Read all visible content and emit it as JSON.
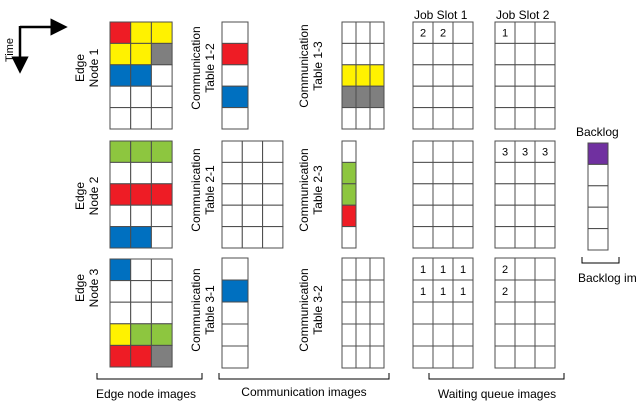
{
  "colors": {
    "red": "#ee1c25",
    "yellow": "#fff200",
    "blue": "#0070c0",
    "gray": "#7f7f7f",
    "green": "#8dc63f",
    "purple": "#7030a0",
    "grid": "#4d4d4d"
  },
  "time_label": "Time",
  "column_headers": {
    "job_slot_1": "Job Slot 1",
    "job_slot_2": "Job Slot 2",
    "backlog": "Backlog"
  },
  "edge_nodes": [
    {
      "label_line1": "Edge",
      "label_line2": "Node 1"
    },
    {
      "label_line1": "Edge",
      "label_line2": "Node 2"
    },
    {
      "label_line1": "Edge",
      "label_line2": "Node 3"
    }
  ],
  "comm_tables": {
    "t12": {
      "line1": "Communication",
      "line2": "Table 1-2"
    },
    "t13": {
      "line1": "Communication",
      "line2": "Table 1-3"
    },
    "t21": {
      "line1": "Communication",
      "line2": "Table 2-1"
    },
    "t23": {
      "line1": "Communication",
      "line2": "Table 2-3"
    },
    "t31": {
      "line1": "Communication",
      "line2": "Table 3-1"
    },
    "t32": {
      "line1": "Communication",
      "line2": "Table 3-2"
    }
  },
  "cell_values": {
    "one": "1",
    "two": "2",
    "three": "3"
  },
  "group_labels": {
    "edge_node_images": "Edge node images",
    "communication_images": "Communication images",
    "waiting_queue_images": "Waiting queue images",
    "backlog_image": "Backlog image"
  }
}
